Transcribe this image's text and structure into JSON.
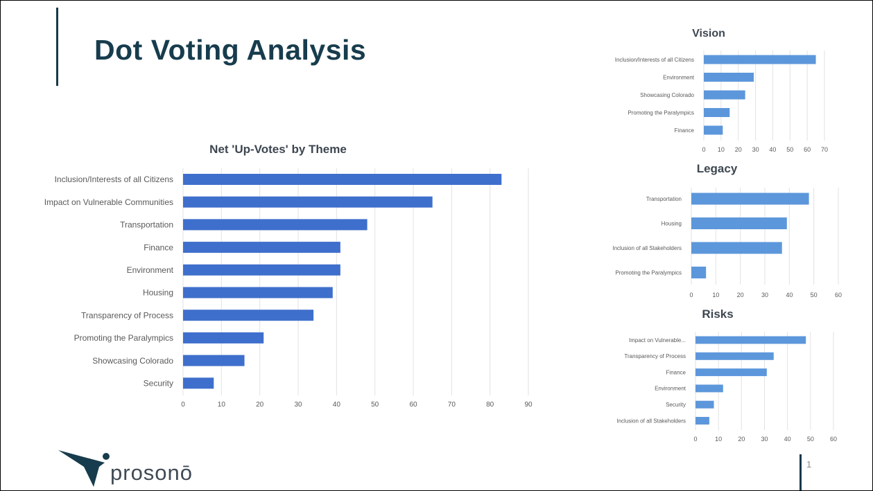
{
  "slide": {
    "title": "Dot Voting Analysis",
    "page_number": "1",
    "logo_text": "prosonō"
  },
  "colors": {
    "accent": "#17394a",
    "bar": "#3f6fcc",
    "bar_light": "#5d97db"
  },
  "chart_data": [
    {
      "id": "main",
      "type": "bar",
      "orientation": "horizontal",
      "title": "Net 'Up-Votes' by Theme",
      "categories": [
        "Inclusion/Interests of all Citizens",
        "Impact on Vulnerable Communities",
        "Transportation",
        "Finance",
        "Environment",
        "Housing",
        "Transparency of Process",
        "Promoting the Paralympics",
        "Showcasing Colorado",
        "Security"
      ],
      "values": [
        83,
        65,
        48,
        41,
        41,
        39,
        34,
        21,
        16,
        8
      ],
      "xlim": [
        0,
        90
      ],
      "xticks": [
        "0",
        "10",
        "20",
        "30",
        "40",
        "50",
        "60",
        "70",
        "80",
        "90"
      ],
      "grid": true
    },
    {
      "id": "vision",
      "type": "bar",
      "orientation": "horizontal",
      "title": "Vision",
      "categories": [
        "Inclusion/Interests of all Citizens",
        "Environment",
        "Showcasing Colorado",
        "Promoting the Paralympics",
        "Finance"
      ],
      "values": [
        65,
        29,
        24,
        15,
        11
      ],
      "xlim": [
        0,
        70
      ],
      "xticks": [
        "0",
        "10",
        "20",
        "30",
        "40",
        "50",
        "60",
        "70"
      ],
      "grid": true
    },
    {
      "id": "legacy",
      "type": "bar",
      "orientation": "horizontal",
      "title": "Legacy",
      "categories": [
        "Transportation",
        "Housing",
        "Inclusion of all Stakeholders",
        "Promoting the Paralympics"
      ],
      "values": [
        48,
        39,
        37,
        6
      ],
      "xlim": [
        0,
        60
      ],
      "xticks": [
        "0",
        "10",
        "20",
        "30",
        "40",
        "50",
        "60"
      ],
      "grid": true
    },
    {
      "id": "risks",
      "type": "bar",
      "orientation": "horizontal",
      "title": "Risks",
      "categories": [
        "Impact on Vulnerable...",
        "Transparency of Process",
        "Finance",
        "Environment",
        "Security",
        "Inclusion of all Stakeholders"
      ],
      "values": [
        48,
        34,
        31,
        12,
        8,
        6
      ],
      "xlim": [
        0,
        60
      ],
      "xticks": [
        "0",
        "10",
        "20",
        "30",
        "40",
        "50",
        "60"
      ],
      "grid": true
    }
  ]
}
